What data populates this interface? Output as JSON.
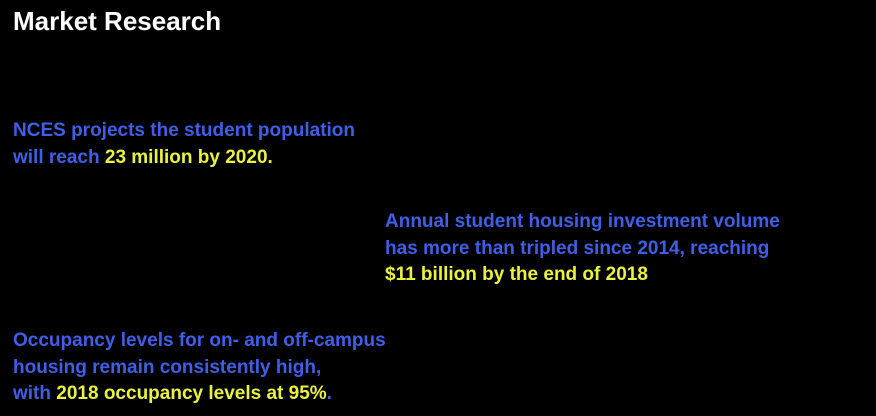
{
  "title": "Market Research",
  "items": [
    {
      "lines": [
        [
          {
            "text": "NCES projects the student population",
            "emphasis": false
          }
        ],
        [
          {
            "text": "will reach ",
            "emphasis": false
          },
          {
            "text": "23 million by 2020.",
            "emphasis": true
          }
        ]
      ]
    },
    {
      "lines": [
        [
          {
            "text": "Annual student housing investment volume",
            "emphasis": false
          }
        ],
        [
          {
            "text": "has more than tripled since 2014, reaching",
            "emphasis": false
          }
        ],
        [
          {
            "text": "$11 billion by the end of 2018",
            "emphasis": true
          }
        ]
      ]
    },
    {
      "lines": [
        [
          {
            "text": "Occupancy levels for on- and off-campus",
            "emphasis": false
          }
        ],
        [
          {
            "text": "housing remain consistently high,",
            "emphasis": false
          }
        ],
        [
          {
            "text": "with ",
            "emphasis": false
          },
          {
            "text": "2018 occupancy levels at 95%",
            "emphasis": true
          },
          {
            "text": ".",
            "emphasis": false
          }
        ]
      ]
    }
  ]
}
